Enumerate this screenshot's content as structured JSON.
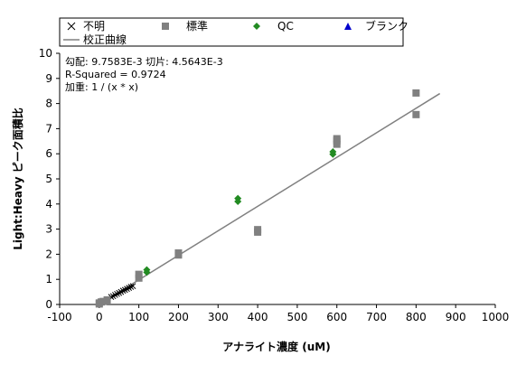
{
  "chart_data": {
    "type": "scatter",
    "xlabel": "アナライト濃度 (uM)",
    "ylabel": "Light:Heavy ピーク面積比",
    "xlim": [
      -100,
      1000
    ],
    "ylim": [
      0,
      10
    ],
    "x_ticks": [
      "-100",
      "0",
      "100",
      "200",
      "300",
      "400",
      "500",
      "600",
      "700",
      "800",
      "900",
      "1000"
    ],
    "y_ticks": [
      "0",
      "1",
      "2",
      "3",
      "4",
      "5",
      "6",
      "7",
      "8",
      "9",
      "10"
    ],
    "grid": false,
    "legend_position": "top",
    "annotations": [
      "勾配: 9.7583E-3 切片: 4.5643E-3",
      "R-Squared = 0.9724",
      "加重: 1 / (x * x)"
    ],
    "series": [
      {
        "name": "不明",
        "marker": "x",
        "color": "#000000",
        "points": [
          [
            30,
            0.3
          ],
          [
            35,
            0.33
          ],
          [
            40,
            0.38
          ],
          [
            45,
            0.42
          ],
          [
            50,
            0.46
          ],
          [
            55,
            0.5
          ],
          [
            60,
            0.55
          ],
          [
            65,
            0.58
          ],
          [
            70,
            0.62
          ],
          [
            75,
            0.66
          ],
          [
            80,
            0.7
          ],
          [
            85,
            0.73
          ]
        ]
      },
      {
        "name": "標準",
        "marker": "square",
        "color": "#808080",
        "points": [
          [
            0,
            0.02
          ],
          [
            0,
            0.06
          ],
          [
            5,
            0.1
          ],
          [
            10,
            0.12
          ],
          [
            20,
            0.18
          ],
          [
            100,
            1.05
          ],
          [
            100,
            1.2
          ],
          [
            200,
            1.97
          ],
          [
            200,
            2.05
          ],
          [
            400,
            2.88
          ],
          [
            400,
            2.98
          ],
          [
            600,
            6.38
          ],
          [
            600,
            6.52
          ],
          [
            600,
            6.6
          ],
          [
            800,
            7.56
          ],
          [
            800,
            8.42
          ]
        ]
      },
      {
        "name": "QC",
        "marker": "diamond",
        "color": "#228b22",
        "points": [
          [
            120,
            1.28
          ],
          [
            120,
            1.38
          ],
          [
            350,
            4.1
          ],
          [
            350,
            4.22
          ],
          [
            590,
            5.98
          ],
          [
            590,
            6.08
          ]
        ]
      },
      {
        "name": "ブランク",
        "marker": "triangle",
        "color": "#0000cc",
        "points": []
      }
    ],
    "fit_line": {
      "name": "校正曲線",
      "color": "#808080",
      "x_range": [
        0,
        860
      ],
      "slope": 0.0097583,
      "intercept": 0.0045643
    }
  }
}
